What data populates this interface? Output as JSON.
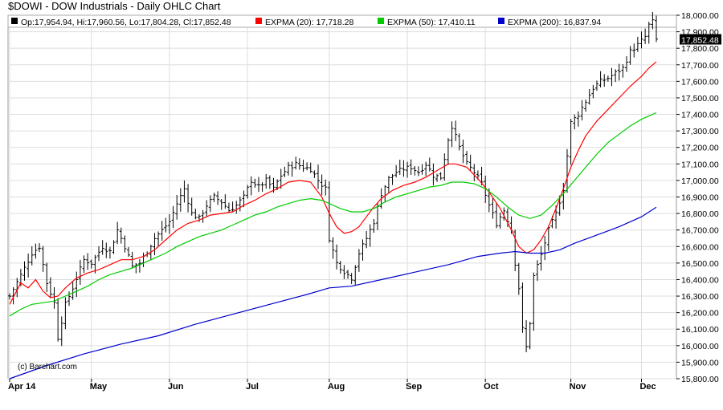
{
  "title": "$DOWI - DOW Industrials - Daily OHLC Chart",
  "legend": {
    "ohlc": "Op:17,954.94, Hi:17,960.56, Lo:17,804.28, Cl:17,852.48",
    "ohlc_color": "#000000",
    "items": [
      {
        "label": "EXPMA (20): 17,718.28",
        "color": "#ff0000"
      },
      {
        "label": "EXPMA (50): 17,410.11",
        "color": "#00cc00"
      },
      {
        "label": "EXPMA (200): 16,837.94",
        "color": "#0000cc"
      }
    ]
  },
  "last_price_label": "17,852.48",
  "watermark": "(c) Barchart.com",
  "chart_data": {
    "type": "line",
    "title": "$DOWI - DOW Industrials - Daily OHLC Chart",
    "ylim": [
      15800,
      18000
    ],
    "yticks": [
      15800,
      15900,
      16000,
      16100,
      16200,
      16300,
      16400,
      16500,
      16600,
      16700,
      16800,
      16900,
      17000,
      17100,
      17200,
      17300,
      17400,
      17500,
      17600,
      17700,
      17800,
      17900,
      18000
    ],
    "ytick_labels": [
      "15,800.00",
      "15,900.00",
      "16,000.00",
      "16,100.00",
      "16,200.00",
      "16,300.00",
      "16,400.00",
      "16,500.00",
      "16,600.00",
      "16,700.00",
      "16,800.00",
      "16,900.00",
      "17,000.00",
      "17,100.00",
      "17,200.00",
      "17,300.00",
      "17,400.00",
      "17,500.00",
      "17,600.00",
      "17,700.00",
      "17,800.00",
      "17,900.00",
      "18,000.00"
    ],
    "xticks": [
      {
        "label": "Apr 14",
        "bar": 0
      },
      {
        "label": "May",
        "bar": 22
      },
      {
        "label": "Jun",
        "bar": 43
      },
      {
        "label": "Jul",
        "bar": 64
      },
      {
        "label": "Aug",
        "bar": 86
      },
      {
        "label": "Sep",
        "bar": 107
      },
      {
        "label": "Oct",
        "bar": 128
      },
      {
        "label": "Nov",
        "bar": 151
      },
      {
        "label": "Dec",
        "bar": 170
      }
    ],
    "grid": true,
    "close_path": [
      [
        0,
        16300
      ],
      [
        4,
        16470
      ],
      [
        6,
        16560
      ],
      [
        8,
        16600
      ],
      [
        10,
        16380
      ],
      [
        12,
        16260
      ],
      [
        13,
        16050
      ],
      [
        15,
        16250
      ],
      [
        17,
        16350
      ],
      [
        20,
        16520
      ],
      [
        22,
        16500
      ],
      [
        25,
        16600
      ],
      [
        27,
        16570
      ],
      [
        29,
        16700
      ],
      [
        31,
        16600
      ],
      [
        33,
        16480
      ],
      [
        35,
        16500
      ],
      [
        37,
        16570
      ],
      [
        39,
        16650
      ],
      [
        41,
        16700
      ],
      [
        43,
        16750
      ],
      [
        45,
        16860
      ],
      [
        47,
        16950
      ],
      [
        49,
        16800
      ],
      [
        51,
        16770
      ],
      [
        53,
        16850
      ],
      [
        55,
        16900
      ],
      [
        57,
        16870
      ],
      [
        59,
        16820
      ],
      [
        61,
        16850
      ],
      [
        63,
        16900
      ],
      [
        65,
        17000
      ],
      [
        67,
        16960
      ],
      [
        69,
        17000
      ],
      [
        71,
        16950
      ],
      [
        73,
        17030
      ],
      [
        75,
        17080
      ],
      [
        77,
        17100
      ],
      [
        79,
        17080
      ],
      [
        81,
        17070
      ],
      [
        83,
        17000
      ],
      [
        85,
        16950
      ],
      [
        86,
        16650
      ],
      [
        88,
        16500
      ],
      [
        90,
        16450
      ],
      [
        92,
        16410
      ],
      [
        94,
        16560
      ],
      [
        96,
        16650
      ],
      [
        98,
        16750
      ],
      [
        100,
        16920
      ],
      [
        102,
        17010
      ],
      [
        104,
        17050
      ],
      [
        106,
        17070
      ],
      [
        108,
        17080
      ],
      [
        110,
        17050
      ],
      [
        112,
        17100
      ],
      [
        114,
        17030
      ],
      [
        116,
        17020
      ],
      [
        118,
        17250
      ],
      [
        119,
        17330
      ],
      [
        121,
        17200
      ],
      [
        123,
        17100
      ],
      [
        125,
        17050
      ],
      [
        127,
        16980
      ],
      [
        129,
        16850
      ],
      [
        131,
        16740
      ],
      [
        133,
        16820
      ],
      [
        135,
        16700
      ],
      [
        136,
        16500
      ],
      [
        137,
        16350
      ],
      [
        138,
        16100
      ],
      [
        139,
        15990
      ],
      [
        140,
        16140
      ],
      [
        141,
        16420
      ],
      [
        143,
        16550
      ],
      [
        145,
        16700
      ],
      [
        147,
        16800
      ],
      [
        149,
        16950
      ],
      [
        150,
        17150
      ],
      [
        151,
        17350
      ],
      [
        153,
        17400
      ],
      [
        155,
        17480
      ],
      [
        157,
        17560
      ],
      [
        159,
        17600
      ],
      [
        161,
        17620
      ],
      [
        163,
        17650
      ],
      [
        165,
        17680
      ],
      [
        167,
        17780
      ],
      [
        169,
        17820
      ],
      [
        171,
        17870
      ],
      [
        172,
        17940
      ],
      [
        173,
        17960
      ],
      [
        174,
        17852
      ]
    ],
    "series": [
      {
        "name": "EXPMA (20)",
        "color": "#ff0000",
        "points": [
          [
            0,
            16250
          ],
          [
            3,
            16380
          ],
          [
            5,
            16350
          ],
          [
            7,
            16400
          ],
          [
            9,
            16330
          ],
          [
            11,
            16290
          ],
          [
            13,
            16300
          ],
          [
            15,
            16350
          ],
          [
            18,
            16410
          ],
          [
            21,
            16440
          ],
          [
            24,
            16460
          ],
          [
            27,
            16490
          ],
          [
            30,
            16520
          ],
          [
            33,
            16520
          ],
          [
            36,
            16540
          ],
          [
            39,
            16580
          ],
          [
            42,
            16640
          ],
          [
            45,
            16700
          ],
          [
            48,
            16740
          ],
          [
            51,
            16760
          ],
          [
            54,
            16790
          ],
          [
            57,
            16800
          ],
          [
            60,
            16810
          ],
          [
            63,
            16850
          ],
          [
            66,
            16880
          ],
          [
            69,
            16920
          ],
          [
            72,
            16950
          ],
          [
            75,
            16990
          ],
          [
            78,
            17000
          ],
          [
            81,
            16990
          ],
          [
            84,
            16900
          ],
          [
            86,
            16800
          ],
          [
            88,
            16720
          ],
          [
            90,
            16680
          ],
          [
            92,
            16690
          ],
          [
            94,
            16720
          ],
          [
            96,
            16780
          ],
          [
            98,
            16840
          ],
          [
            100,
            16890
          ],
          [
            103,
            16940
          ],
          [
            106,
            16970
          ],
          [
            109,
            16990
          ],
          [
            112,
            17020
          ],
          [
            115,
            17060
          ],
          [
            118,
            17100
          ],
          [
            120,
            17100
          ],
          [
            123,
            17080
          ],
          [
            126,
            17010
          ],
          [
            129,
            16930
          ],
          [
            132,
            16830
          ],
          [
            135,
            16700
          ],
          [
            137,
            16600
          ],
          [
            139,
            16560
          ],
          [
            141,
            16580
          ],
          [
            143,
            16640
          ],
          [
            145,
            16720
          ],
          [
            147,
            16830
          ],
          [
            149,
            16950
          ],
          [
            151,
            17080
          ],
          [
            153,
            17180
          ],
          [
            155,
            17270
          ],
          [
            158,
            17360
          ],
          [
            161,
            17430
          ],
          [
            164,
            17500
          ],
          [
            167,
            17570
          ],
          [
            170,
            17630
          ],
          [
            172,
            17680
          ],
          [
            174,
            17718
          ]
        ]
      },
      {
        "name": "EXPMA (50)",
        "color": "#00cc00",
        "points": [
          [
            0,
            16180
          ],
          [
            3,
            16220
          ],
          [
            6,
            16250
          ],
          [
            9,
            16260
          ],
          [
            12,
            16270
          ],
          [
            15,
            16300
          ],
          [
            18,
            16330
          ],
          [
            21,
            16360
          ],
          [
            24,
            16400
          ],
          [
            27,
            16430
          ],
          [
            30,
            16450
          ],
          [
            33,
            16470
          ],
          [
            36,
            16500
          ],
          [
            39,
            16530
          ],
          [
            42,
            16560
          ],
          [
            45,
            16600
          ],
          [
            48,
            16630
          ],
          [
            51,
            16660
          ],
          [
            54,
            16680
          ],
          [
            57,
            16700
          ],
          [
            60,
            16730
          ],
          [
            63,
            16760
          ],
          [
            66,
            16790
          ],
          [
            69,
            16810
          ],
          [
            72,
            16840
          ],
          [
            75,
            16860
          ],
          [
            78,
            16880
          ],
          [
            81,
            16890
          ],
          [
            84,
            16880
          ],
          [
            86,
            16860
          ],
          [
            89,
            16830
          ],
          [
            92,
            16810
          ],
          [
            95,
            16810
          ],
          [
            98,
            16830
          ],
          [
            101,
            16870
          ],
          [
            104,
            16900
          ],
          [
            107,
            16920
          ],
          [
            110,
            16940
          ],
          [
            113,
            16960
          ],
          [
            116,
            16970
          ],
          [
            119,
            16990
          ],
          [
            122,
            16990
          ],
          [
            125,
            16980
          ],
          [
            128,
            16950
          ],
          [
            131,
            16900
          ],
          [
            134,
            16840
          ],
          [
            137,
            16790
          ],
          [
            140,
            16770
          ],
          [
            143,
            16790
          ],
          [
            146,
            16850
          ],
          [
            149,
            16920
          ],
          [
            152,
            17000
          ],
          [
            155,
            17080
          ],
          [
            158,
            17160
          ],
          [
            161,
            17230
          ],
          [
            164,
            17280
          ],
          [
            167,
            17330
          ],
          [
            170,
            17370
          ],
          [
            172,
            17390
          ],
          [
            174,
            17410
          ]
        ]
      },
      {
        "name": "EXPMA (200)",
        "color": "#0000cc",
        "points": [
          [
            0,
            15800
          ],
          [
            10,
            15880
          ],
          [
            20,
            15950
          ],
          [
            30,
            16010
          ],
          [
            40,
            16060
          ],
          [
            50,
            16130
          ],
          [
            60,
            16190
          ],
          [
            70,
            16250
          ],
          [
            80,
            16310
          ],
          [
            86,
            16350
          ],
          [
            92,
            16360
          ],
          [
            100,
            16400
          ],
          [
            110,
            16450
          ],
          [
            118,
            16490
          ],
          [
            126,
            16540
          ],
          [
            132,
            16560
          ],
          [
            136,
            16570
          ],
          [
            140,
            16560
          ],
          [
            144,
            16560
          ],
          [
            148,
            16580
          ],
          [
            152,
            16620
          ],
          [
            158,
            16670
          ],
          [
            164,
            16720
          ],
          [
            170,
            16780
          ],
          [
            174,
            16838
          ]
        ]
      }
    ]
  }
}
